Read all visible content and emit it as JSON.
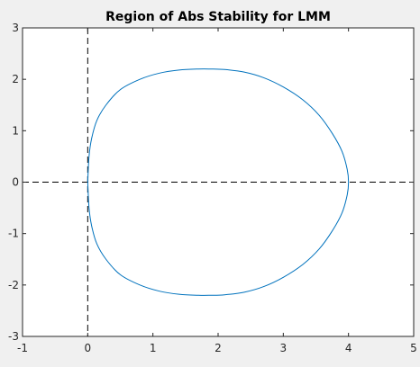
{
  "chart_data": {
    "type": "line",
    "title": "Region of Abs Stability for LMM",
    "xlabel": "",
    "ylabel": "",
    "xlim": [
      -1,
      5
    ],
    "ylim": [
      -3,
      3
    ],
    "xticks": [
      "-1",
      "0",
      "1",
      "2",
      "3",
      "4",
      "5"
    ],
    "yticks": [
      "-3",
      "-2",
      "-1",
      "0",
      "1",
      "2",
      "3"
    ],
    "grid": false,
    "legend": "none",
    "series": [
      {
        "color": "#0072bd",
        "style": "solid",
        "x": [
          0.0,
          0.02,
          0.06,
          0.14,
          0.28,
          0.5,
          0.8,
          1.1,
          1.4,
          1.7,
          1.88,
          2.1,
          2.4,
          2.7,
          3.0,
          3.3,
          3.55,
          3.75,
          3.9,
          3.98,
          4.0,
          3.98,
          3.9,
          3.75,
          3.55,
          3.3,
          3.0,
          2.7,
          2.4,
          2.1,
          1.88,
          1.7,
          1.4,
          1.1,
          0.8,
          0.5,
          0.28,
          0.14,
          0.06,
          0.02,
          0.0
        ],
        "y": [
          0.0,
          0.5,
          0.85,
          1.2,
          1.5,
          1.8,
          2.0,
          2.12,
          2.18,
          2.2,
          2.2,
          2.19,
          2.14,
          2.03,
          1.85,
          1.6,
          1.3,
          0.95,
          0.6,
          0.25,
          0.0,
          -0.25,
          -0.6,
          -0.95,
          -1.3,
          -1.6,
          -1.85,
          -2.03,
          -2.14,
          -2.19,
          -2.2,
          -2.2,
          -2.18,
          -2.12,
          -2.0,
          -1.8,
          -1.5,
          -1.2,
          -0.85,
          -0.5,
          0.0
        ]
      }
    ],
    "reference_lines": [
      {
        "orientation": "vertical",
        "value": 0,
        "style": "dashed",
        "color": "#000000"
      },
      {
        "orientation": "horizontal",
        "value": 0,
        "style": "dashed",
        "color": "#000000"
      }
    ]
  }
}
